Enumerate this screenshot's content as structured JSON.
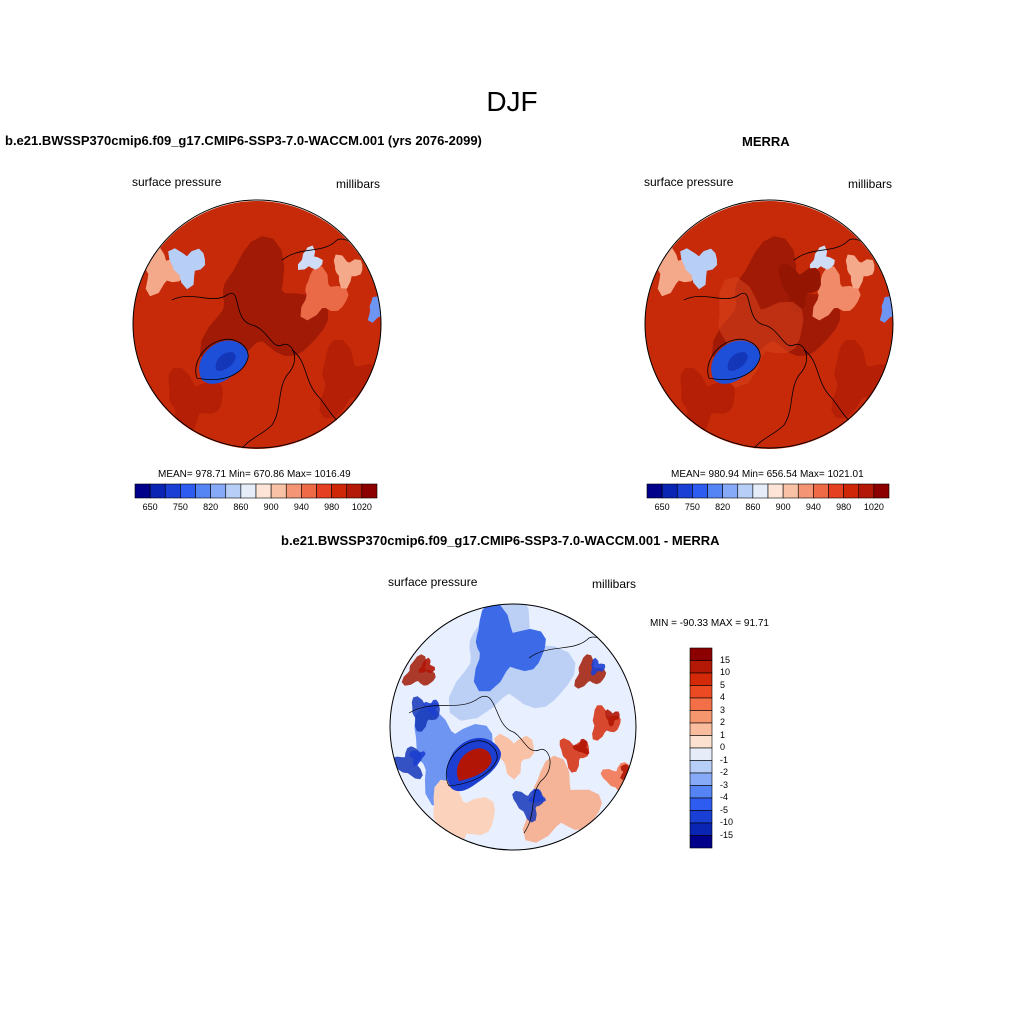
{
  "figure": {
    "title": "DJF"
  },
  "panels": [
    {
      "title": "b.e21.BWSSP370cmip6.f09_g17.CMIP6-SSP3-7.0-WACCM.001 (yrs 2076-2099)",
      "variable": "surface pressure",
      "units": "millibars",
      "stats": "MEAN= 978.71  Min= 670.86  Max= 1016.49"
    },
    {
      "title": "MERRA",
      "variable": "surface pressure",
      "units": "millibars",
      "stats": "MEAN= 980.94  Min= 656.54  Max= 1021.01"
    },
    {
      "title": "b.e21.BWSSP370cmip6.f09_g17.CMIP6-SSP3-7.0-WACCM.001 - MERRA",
      "variable": "surface pressure",
      "units": "millibars",
      "stats": "MIN = -90.33 MAX =  91.71"
    }
  ],
  "colorbars": {
    "absolute": {
      "labels": [
        "650",
        "750",
        "820",
        "860",
        "900",
        "940",
        "980",
        "1020"
      ],
      "colors": [
        "#00008b",
        "#0a24b4",
        "#1a3fd4",
        "#2e5cf0",
        "#5585f5",
        "#86aaf7",
        "#b7cef7",
        "#e6edf8",
        "#fde4d6",
        "#f9c1a6",
        "#f49575",
        "#ef6a46",
        "#e54021",
        "#cf2608",
        "#b41806",
        "#8c0000"
      ]
    },
    "difference": {
      "labels": [
        "15",
        "10",
        "5",
        "4",
        "3",
        "2",
        "1",
        "0",
        "-1",
        "-2",
        "-3",
        "-4",
        "-5",
        "-10",
        "-15"
      ],
      "colors": [
        "#8c0000",
        "#b41806",
        "#d42a0a",
        "#ec4a22",
        "#f26f48",
        "#f6966e",
        "#f9bd9d",
        "#fde1d0",
        "#e6edf8",
        "#b7cef7",
        "#86aaf7",
        "#5585f5",
        "#2e5cf0",
        "#1a3fd4",
        "#0a24b4",
        "#00008b"
      ]
    }
  },
  "colors": {
    "high_pressure": "#c62a08",
    "ocean_core": "#a11a05",
    "greenland": "#1d4fd8",
    "diff_positive": "#b11505",
    "diff_negative": "#1c3fd2",
    "diff_neutral": "#e8efff"
  }
}
